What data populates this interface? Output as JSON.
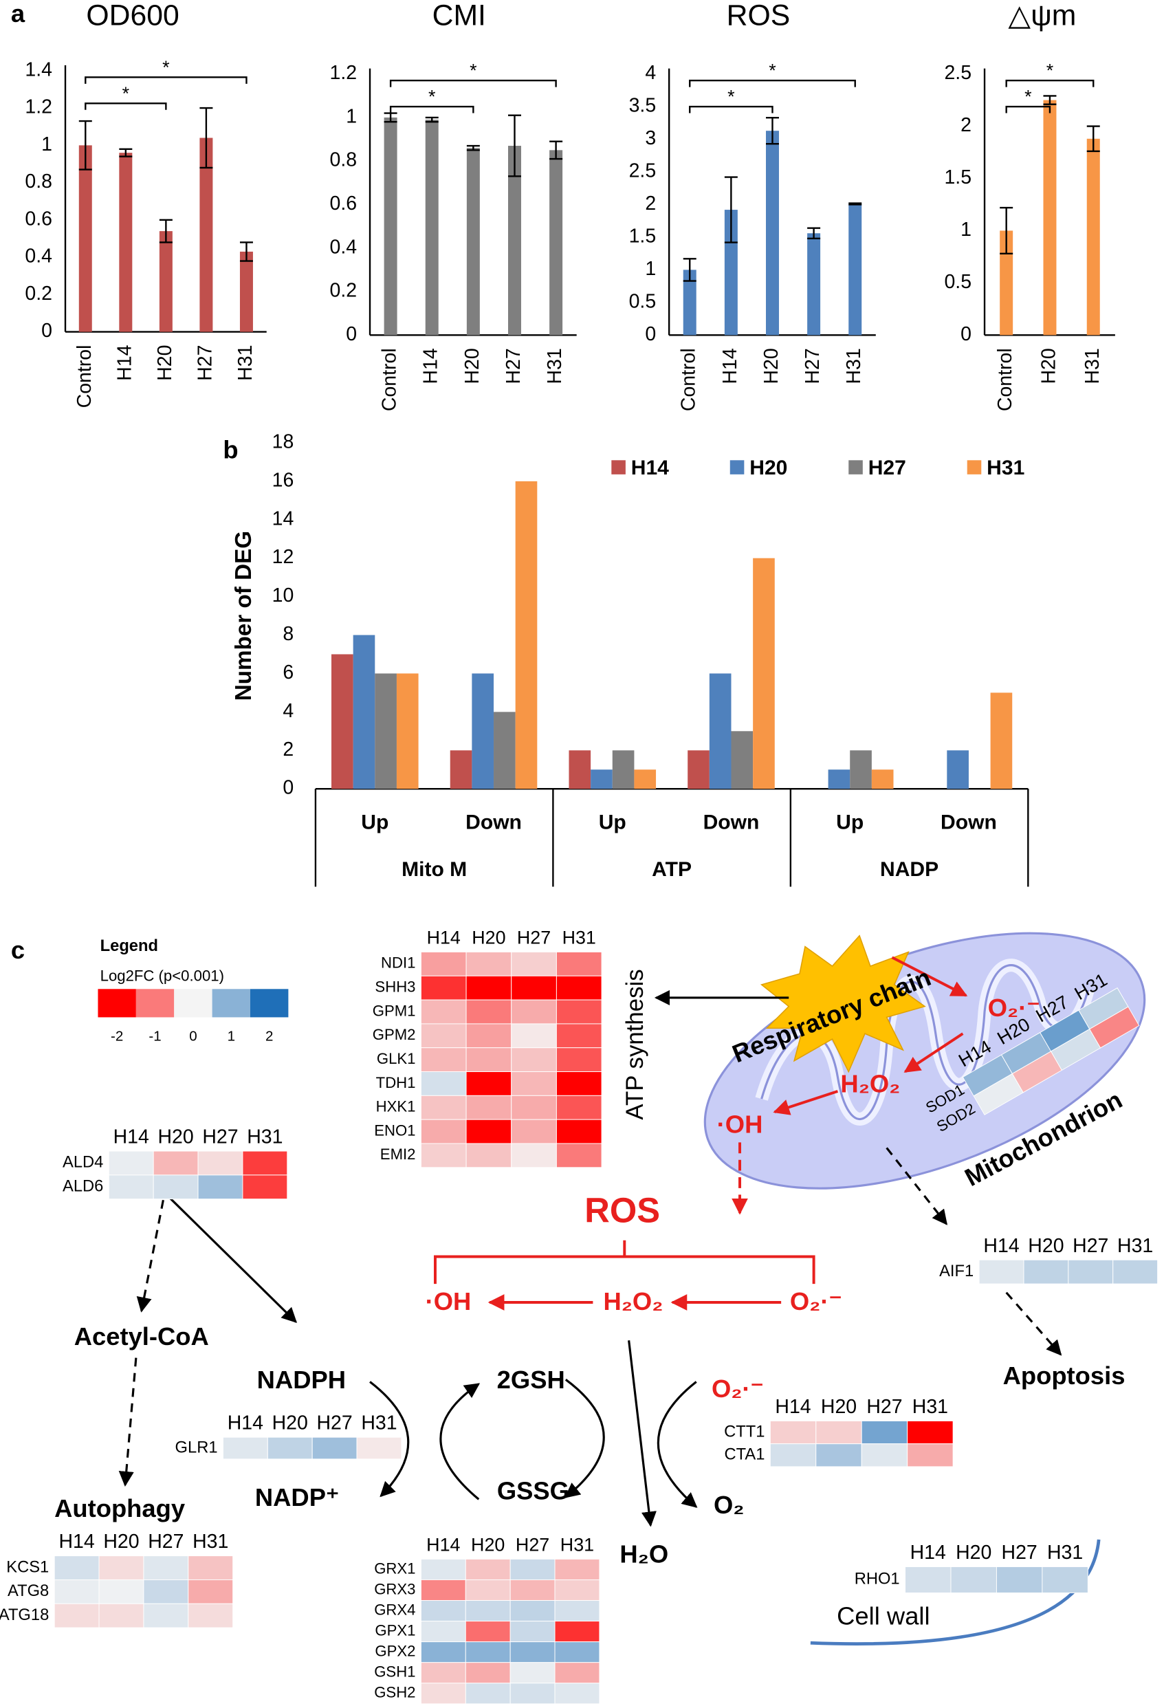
{
  "chart_data": [
    {
      "type": "bar",
      "panel": "a",
      "title": "OD600",
      "categories": [
        "Control",
        "H14",
        "H20",
        "H27",
        "H31"
      ],
      "values": [
        1.0,
        0.96,
        0.54,
        1.04,
        0.43
      ],
      "errors": [
        0.13,
        0.02,
        0.06,
        0.16,
        0.05
      ],
      "color": "#c0504d",
      "ylim": [
        0,
        1.4
      ],
      "yticks": [
        0,
        0.2,
        0.4,
        0.6,
        0.8,
        1,
        1.2,
        1.4
      ],
      "annotations": [
        {
          "text": "*",
          "between": [
            "Control",
            "H20"
          ]
        },
        {
          "text": "*",
          "between": [
            "Control",
            "H31"
          ]
        }
      ]
    },
    {
      "type": "bar",
      "title": "CMI",
      "categories": [
        "Control",
        "H14",
        "H20",
        "H27",
        "H31"
      ],
      "values": [
        1.0,
        0.99,
        0.86,
        0.87,
        0.85
      ],
      "errors": [
        0.02,
        0.01,
        0.01,
        0.14,
        0.04
      ],
      "color": "#7f7f7f",
      "ylim": [
        0,
        1.2
      ],
      "yticks": [
        0,
        0.2,
        0.4,
        0.6,
        0.8,
        1,
        1.2
      ],
      "annotations": [
        {
          "text": "*",
          "between": [
            "Control",
            "H20"
          ]
        },
        {
          "text": "*",
          "between": [
            "Control",
            "H31"
          ]
        }
      ]
    },
    {
      "type": "bar",
      "title": "ROS",
      "categories": [
        "Control",
        "H14",
        "H20",
        "H27",
        "H31"
      ],
      "values": [
        1.0,
        1.92,
        3.13,
        1.56,
        2.01
      ],
      "errors": [
        0.17,
        0.5,
        0.2,
        0.08,
        0.01
      ],
      "color": "#4f81bd",
      "ylim": [
        0,
        4
      ],
      "yticks": [
        0,
        0.5,
        1,
        1.5,
        2,
        2.5,
        3,
        3.5,
        4
      ],
      "annotations": [
        {
          "text": "*",
          "between": [
            "Control",
            "H20"
          ]
        },
        {
          "text": "*",
          "between": [
            "Control",
            "H31"
          ]
        }
      ]
    },
    {
      "type": "bar",
      "title": "△ψm",
      "categories": [
        "Control",
        "H20",
        "H31"
      ],
      "values": [
        1.0,
        2.25,
        1.88
      ],
      "errors": [
        0.22,
        0.04,
        0.12
      ],
      "color": "#f79646",
      "ylim": [
        0,
        2.5
      ],
      "yticks": [
        0,
        0.5,
        1,
        1.5,
        2,
        2.5
      ],
      "annotations": [
        {
          "text": "*",
          "between": [
            "Control",
            "H20"
          ]
        },
        {
          "text": "*",
          "between": [
            "Control",
            "H31"
          ]
        }
      ]
    },
    {
      "type": "grouped_bar",
      "panel": "b",
      "y_label": "Number of DEG",
      "categories": [
        "Up",
        "Down",
        "Up",
        "Down",
        "Up",
        "Down"
      ],
      "groups": [
        "Mito M",
        "ATP",
        "NADP"
      ],
      "legend": "top-right",
      "ylim": [
        0,
        18
      ],
      "yticks": [
        0,
        2,
        4,
        6,
        8,
        10,
        12,
        14,
        16,
        18
      ],
      "series": [
        {
          "name": "H14",
          "color": "#c0504d",
          "values": [
            7,
            2,
            2,
            2,
            0,
            0
          ]
        },
        {
          "name": "H20",
          "color": "#4f81bd",
          "values": [
            8,
            6,
            1,
            6,
            1,
            2
          ]
        },
        {
          "name": "H27",
          "color": "#7f7f7f",
          "values": [
            6,
            4,
            2,
            3,
            2,
            0
          ]
        },
        {
          "name": "H31",
          "color": "#f79646",
          "values": [
            6,
            16,
            1,
            12,
            1,
            5
          ]
        }
      ]
    }
  ],
  "diagram": {
    "labels": {
      "panel": "c",
      "atp_synthesis": "ATP synthesis",
      "respiratory_chain": "Respiratory chain",
      "mitochondrion": "Mitochondrion",
      "mito_superoxide": "O₂·⁻",
      "mito_peroxide": "H₂O₂",
      "mito_hydroxyl": "·OH",
      "ros": "ROS",
      "ros_hydroxyl": "·OH",
      "ros_peroxide": "H₂O₂",
      "ros_superoxide": "O₂·⁻",
      "acetyl_coa": "Acetyl-CoA",
      "nadph": "NADPH",
      "gsh": "2GSH",
      "nadp": "NADP⁺",
      "gssg": "GSSG",
      "catalase_superoxide": "O₂·⁻",
      "oxygen": "O₂",
      "water": "H₂O",
      "autophagy": "Autophagy",
      "apoptosis": "Apoptosis",
      "cell_wall": "Cell wall"
    },
    "legend": {
      "title": "Legend",
      "subtitle": "Log2FC (p<0.001)",
      "ticks": [
        -2,
        -1,
        0,
        1,
        2
      ],
      "colors": {
        "low": "#ff0000",
        "mid": "#f4f4f4",
        "high": "#1f6fb8"
      }
    },
    "heatmaps": [
      {
        "columns": [
          "H14",
          "H20",
          "H27",
          "H31"
        ],
        "rows": [
          {
            "name": "NDI1",
            "values": [
              -0.7,
              -0.5,
              -0.3,
              -1.0
            ]
          },
          {
            "name": "SHH3",
            "values": [
              -1.6,
              -2,
              -2,
              -2
            ]
          },
          {
            "name": "GPM1",
            "values": [
              -0.5,
              -1.0,
              -0.6,
              -1.3
            ]
          },
          {
            "name": "GPM2",
            "values": [
              -0.4,
              -0.7,
              -0.1,
              -1.3
            ]
          },
          {
            "name": "GLK1",
            "values": [
              -0.5,
              -0.6,
              -0.4,
              -1.3
            ]
          },
          {
            "name": "TDH1",
            "values": [
              0.3,
              -2,
              -0.5,
              -2
            ]
          },
          {
            "name": "HXK1",
            "values": [
              -0.4,
              -0.6,
              -0.6,
              -1.3
            ]
          },
          {
            "name": "ENO1",
            "values": [
              -0.6,
              -2,
              -0.6,
              -2
            ]
          },
          {
            "name": "EMI2",
            "values": [
              -0.3,
              -0.4,
              -0.1,
              -1.0
            ]
          }
        ]
      },
      {
        "columns": [
          "H14",
          "H20",
          "H27",
          "H31"
        ],
        "rows": [
          {
            "name": "ALD4",
            "values": [
              0.1,
              -0.5,
              -0.2,
              -1.5
            ]
          },
          {
            "name": "ALD6",
            "values": [
              0.2,
              0.3,
              0.8,
              -1.5
            ]
          }
        ]
      },
      {
        "columns": [
          "H14",
          "H20",
          "H27",
          "H31"
        ],
        "rows": [
          {
            "name": "SOD1",
            "values": [
              0.9,
              0.9,
              1.3,
              0.5
            ]
          },
          {
            "name": "SOD2",
            "values": [
              0.1,
              -0.5,
              0.3,
              -0.9
            ]
          }
        ]
      },
      {
        "columns": [
          "H14",
          "H20",
          "H27",
          "H31"
        ],
        "rows": [
          {
            "name": "AIF1",
            "values": [
              0.2,
              0.5,
              0.5,
              0.5
            ]
          }
        ]
      },
      {
        "columns": [
          "H14",
          "H20",
          "H27",
          "H31"
        ],
        "rows": [
          {
            "name": "GLR1",
            "values": [
              0.2,
              0.5,
              0.8,
              -0.1
            ]
          }
        ]
      },
      {
        "columns": [
          "H14",
          "H20",
          "H27",
          "H31"
        ],
        "rows": [
          {
            "name": "CTT1",
            "values": [
              -0.3,
              -0.3,
              1.2,
              -2
            ]
          },
          {
            "name": "CTA1",
            "values": [
              0.3,
              0.7,
              0.2,
              -0.6
            ]
          }
        ]
      },
      {
        "columns": [
          "H14",
          "H20",
          "H27",
          "H31"
        ],
        "rows": [
          {
            "name": "KCS1",
            "values": [
              0.3,
              -0.2,
              0.2,
              -0.4
            ]
          },
          {
            "name": "ATG8",
            "values": [
              0.1,
              0.05,
              0.4,
              -0.6
            ]
          },
          {
            "name": "ATG18",
            "values": [
              -0.2,
              -0.2,
              0.2,
              -0.2
            ]
          }
        ]
      },
      {
        "columns": [
          "H14",
          "H20",
          "H27",
          "H31"
        ],
        "rows": [
          {
            "name": "GRX1",
            "values": [
              0.2,
              -0.4,
              0.4,
              -0.5
            ]
          },
          {
            "name": "GRX3",
            "values": [
              -0.9,
              -0.3,
              -0.5,
              -0.3
            ]
          },
          {
            "name": "GRX4",
            "values": [
              0.4,
              0.4,
              0.5,
              0.3
            ]
          },
          {
            "name": "GPX1",
            "values": [
              0.2,
              -1.1,
              0.4,
              -1.6
            ]
          },
          {
            "name": "GPX2",
            "values": [
              1.0,
              1.0,
              1.0,
              1.0
            ]
          },
          {
            "name": "GSH1",
            "values": [
              -0.4,
              -0.6,
              0.1,
              -0.6
            ]
          },
          {
            "name": "GSH2",
            "values": [
              -0.2,
              0.3,
              0.3,
              0.2
            ]
          }
        ]
      },
      {
        "columns": [
          "H14",
          "H20",
          "H27",
          "H31"
        ],
        "rows": [
          {
            "name": "RHO1",
            "values": [
              0.3,
              0.4,
              0.6,
              0.5
            ]
          }
        ]
      }
    ]
  }
}
